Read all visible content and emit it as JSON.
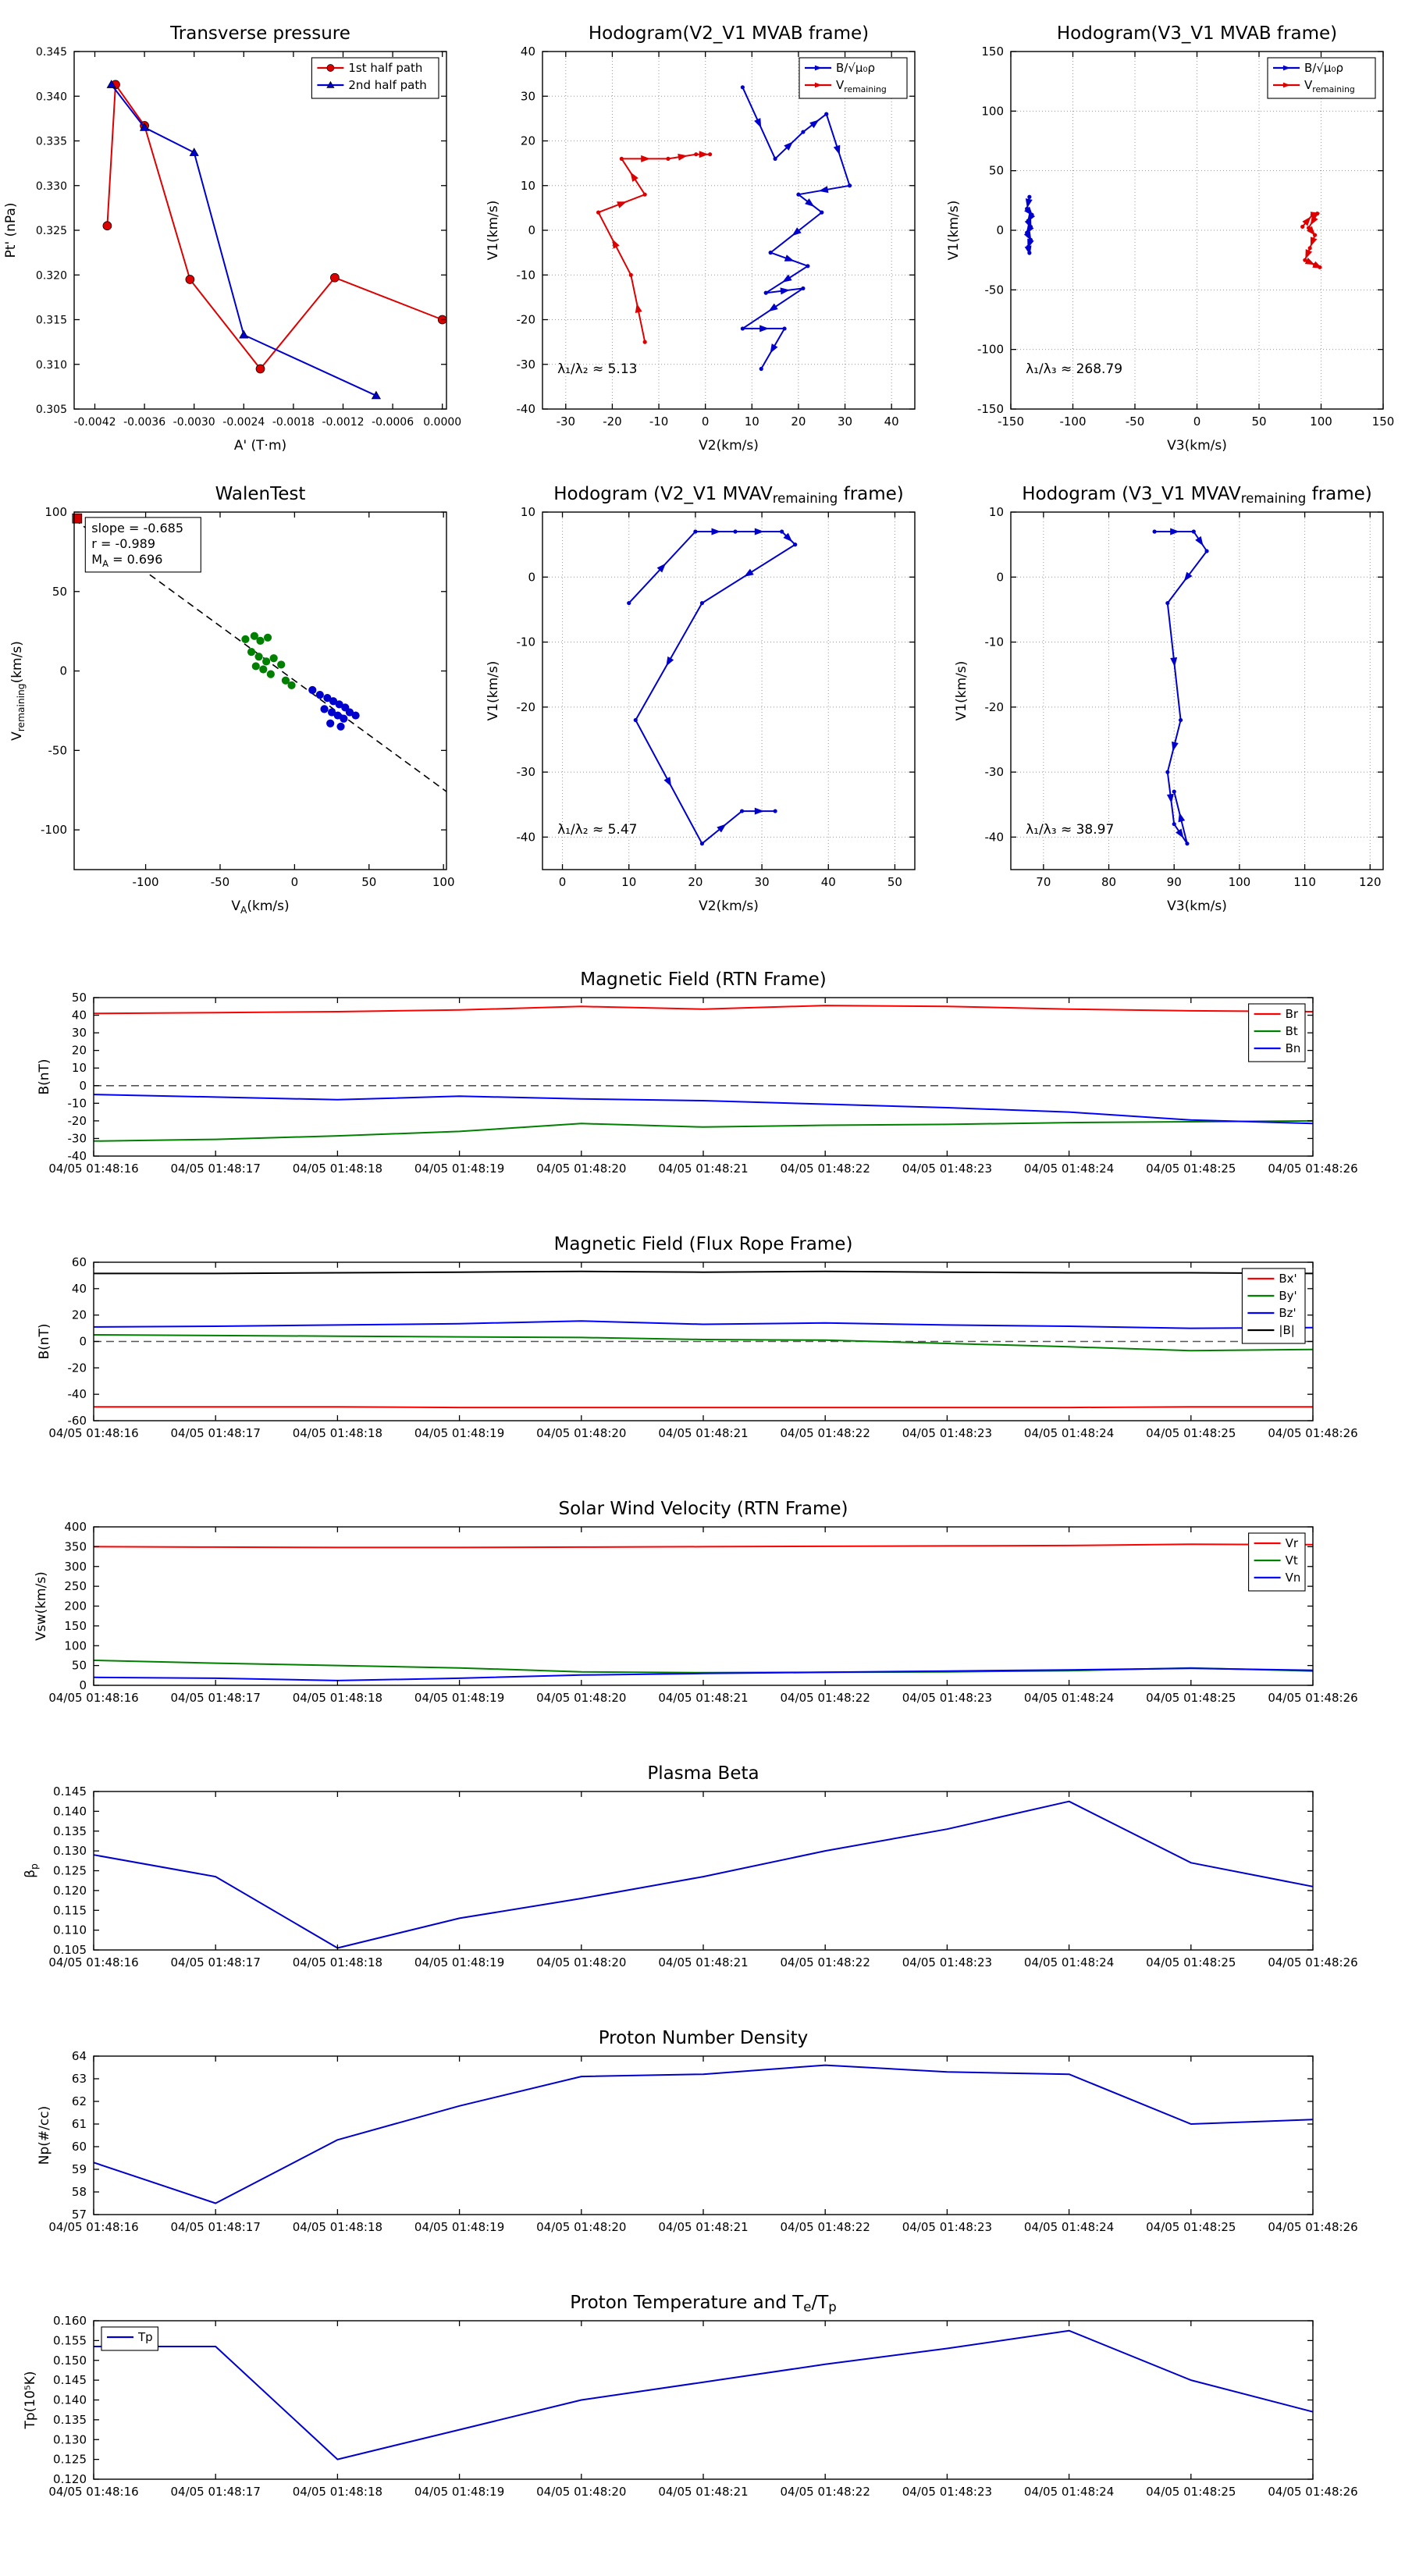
{
  "time_ticks": [
    "04/05 01:48:16",
    "04/05 01:48:17",
    "04/05 01:48:18",
    "04/05 01:48:19",
    "04/05 01:48:20",
    "04/05 01:48:21",
    "04/05 01:48:22",
    "04/05 01:48:23",
    "04/05 01:48:24",
    "04/05 01:48:25",
    "04/05 01:48:26"
  ],
  "chart_data": [
    {
      "id": "transverse-pressure",
      "type": "line",
      "title": "Transverse pressure",
      "xlabel": "A' (T·m)",
      "ylabel": "Pt' (nPa)",
      "xlim": [
        -0.00445,
        5e-05
      ],
      "ylim": [
        0.305,
        0.345
      ],
      "xticks": [
        -0.0042,
        -0.0036,
        -0.003,
        -0.0024,
        -0.0018,
        -0.0012,
        -0.0006,
        0.0
      ],
      "xdec": 4,
      "tickfs": 14,
      "yticks": [
        0.305,
        0.31,
        0.315,
        0.32,
        0.325,
        0.33,
        0.335,
        0.34,
        0.345
      ],
      "ydec": 3,
      "grid": false,
      "legend": "upper right",
      "series": [
        {
          "name": "1st half path",
          "color": "#dd0000",
          "marker": "circle",
          "x": [
            -0.00405,
            -0.00395,
            -0.0036,
            -0.00305,
            -0.0022,
            -0.0013,
            0.0
          ],
          "y": [
            0.3255,
            0.3413,
            0.3367,
            0.3195,
            0.3095,
            0.3197,
            0.315
          ]
        },
        {
          "name": "2nd half path",
          "color": "#0000cc",
          "marker": "triangle",
          "x": [
            -0.004,
            -0.0036,
            -0.003,
            -0.0024,
            -0.0008
          ],
          "y": [
            0.3413,
            0.3365,
            0.3337,
            0.3133,
            0.3065
          ]
        }
      ]
    },
    {
      "id": "hodogram-v2v1-mvab",
      "type": "line",
      "title": "Hodogram(V2_V1 MVAB frame)",
      "xlabel": "V2(km/s)",
      "ylabel": "V1(km/s)",
      "xlim": [
        -35,
        45
      ],
      "ylim": [
        -40,
        40
      ],
      "xticks": [
        -30,
        -20,
        -10,
        0,
        10,
        20,
        30,
        40
      ],
      "xdec": 0,
      "yticks": [
        -40,
        -30,
        -20,
        -10,
        0,
        10,
        20,
        30,
        40
      ],
      "ydec": 0,
      "grid": true,
      "legend": "upper right",
      "annotations": [
        {
          "fx": 0.04,
          "fy": 0.1,
          "lines": [
            "λ₁/λ₂ ≈ 5.13"
          ]
        }
      ],
      "series": [
        {
          "name": "B/√μ₀ρ",
          "color": "#0000cc",
          "marker": "arrow",
          "x": [
            8,
            15,
            21,
            26,
            31,
            20,
            25,
            14,
            22,
            13,
            21,
            8,
            17,
            12
          ],
          "y": [
            32,
            16,
            22,
            26,
            10,
            8,
            4,
            -5,
            -8,
            -14,
            -13,
            -22,
            -22,
            -31
          ]
        },
        {
          "name": "V_{remaining}",
          "color": "#dd0000",
          "marker": "arrow",
          "x": [
            -13,
            -16,
            -23,
            -13,
            -18,
            -8,
            -2,
            1
          ],
          "y": [
            -25,
            -10,
            4,
            8,
            16,
            16,
            17,
            17
          ]
        }
      ]
    },
    {
      "id": "hodogram-v3v1-mvab",
      "type": "line",
      "title": "Hodogram(V3_V1 MVAB frame)",
      "xlabel": "V3(km/s)",
      "ylabel": "V1(km/s)",
      "xlim": [
        -150,
        150
      ],
      "ylim": [
        -150,
        150
      ],
      "xticks": [
        -150,
        -100,
        -50,
        0,
        50,
        100,
        150
      ],
      "xdec": 0,
      "yticks": [
        -150,
        -100,
        -50,
        0,
        50,
        100,
        150
      ],
      "ydec": 0,
      "grid": true,
      "legend": "upper right",
      "annotations": [
        {
          "fx": 0.04,
          "fy": 0.1,
          "lines": [
            "λ₁/λ₃ ≈ 268.79"
          ]
        }
      ],
      "series": [
        {
          "name": "B/√μ₀ρ",
          "color": "#0000cc",
          "marker": "arrow",
          "x": [
            -135,
            -137,
            -133,
            -136,
            -134,
            -137,
            -134,
            -136,
            -135
          ],
          "y": [
            28,
            18,
            13,
            8,
            3,
            -2,
            -8,
            -14,
            -19
          ]
        },
        {
          "name": "V_{remaining}",
          "color": "#dd0000",
          "marker": "arrow",
          "x": [
            85,
            93,
            97,
            90,
            95,
            91,
            87,
            95,
            99
          ],
          "y": [
            3,
            13,
            14,
            2,
            -4,
            -15,
            -25,
            -29,
            -31
          ]
        }
      ]
    },
    {
      "id": "walen-test",
      "type": "scatter",
      "title": "WalenTest",
      "xlabel": "V_{A}(km/s)",
      "ylabel": "V_{remaining}(km/s)",
      "xlim": [
        -148,
        102
      ],
      "ylim": [
        -125,
        100
      ],
      "xticks": [
        -100,
        -50,
        0,
        50,
        100
      ],
      "xdec": 0,
      "yticks": [
        -100,
        -50,
        0,
        50,
        100
      ],
      "ydec": 0,
      "grid": false,
      "annotations": [
        {
          "fx": 0.03,
          "fy": 0.985,
          "box": true,
          "w": 148,
          "lines": [
            "slope = -0.685",
            "r = -0.989",
            "M_{A} = 0.696"
          ]
        }
      ],
      "series": [
        {
          "color": "#000000",
          "dash": "9,6",
          "width": 1.6,
          "x": [
            -148,
            102
          ],
          "y": [
            95.4,
            -75.9
          ]
        },
        {
          "color": "#cc0000",
          "line": false,
          "marker": "square",
          "msize": 6,
          "x": [
            -146
          ],
          "y": [
            96
          ]
        },
        {
          "color": "#008000",
          "line": false,
          "marker": "dot",
          "msize": 6,
          "x": [
            -33,
            -27,
            -23,
            -18,
            -29,
            -24,
            -19,
            -14,
            -9,
            -26,
            -21,
            -16,
            -6,
            -2
          ],
          "y": [
            20,
            22,
            19,
            21,
            12,
            9,
            6,
            8,
            4,
            3,
            1,
            -2,
            -6,
            -9
          ]
        },
        {
          "color": "#0000cc",
          "line": false,
          "marker": "dot",
          "msize": 6,
          "x": [
            12,
            17,
            22,
            26,
            30,
            34,
            20,
            25,
            29,
            33,
            37,
            41,
            24,
            31
          ],
          "y": [
            -12,
            -15,
            -17,
            -19,
            -21,
            -23,
            -24,
            -26,
            -28,
            -30,
            -26,
            -28,
            -33,
            -35
          ]
        }
      ]
    },
    {
      "id": "hodogram-v2v1-mvav",
      "type": "line",
      "title": "Hodogram (V2_V1 MVAV_{remaining} frame)",
      "xlabel": "V2(km/s)",
      "ylabel": "V1(km/s)",
      "xlim": [
        -3,
        53
      ],
      "ylim": [
        -45,
        10
      ],
      "xticks": [
        0,
        10,
        20,
        30,
        40,
        50
      ],
      "xdec": 0,
      "yticks": [
        -40,
        -30,
        -20,
        -10,
        0,
        10
      ],
      "ydec": 0,
      "grid": true,
      "annotations": [
        {
          "fx": 0.04,
          "fy": 0.1,
          "lines": [
            "λ₁/λ₂ ≈ 5.47"
          ]
        }
      ],
      "series": [
        {
          "color": "#0000cc",
          "marker": "arrow",
          "x": [
            10,
            20,
            26,
            33,
            35,
            21,
            11,
            21,
            27,
            32
          ],
          "y": [
            -4,
            7,
            7,
            7,
            5,
            -4,
            -22,
            -41,
            -36,
            -36
          ]
        }
      ]
    },
    {
      "id": "hodogram-v3v1-mvav",
      "type": "line",
      "title": "Hodogram (V3_V1 MVAV_{remaining} frame)",
      "xlabel": "V3(km/s)",
      "ylabel": "V1(km/s)",
      "xlim": [
        65,
        122
      ],
      "ylim": [
        -45,
        10
      ],
      "xticks": [
        70,
        80,
        90,
        100,
        110,
        120
      ],
      "xdec": 0,
      "yticks": [
        -40,
        -30,
        -20,
        -10,
        0,
        10
      ],
      "ydec": 0,
      "grid": true,
      "annotations": [
        {
          "fx": 0.04,
          "fy": 0.1,
          "lines": [
            "λ₁/λ₃ ≈ 38.97"
          ]
        }
      ],
      "series": [
        {
          "color": "#0000cc",
          "marker": "arrow",
          "x": [
            87,
            93,
            95,
            89,
            91,
            89,
            90,
            92,
            90
          ],
          "y": [
            7,
            7,
            4,
            -4,
            -22,
            -30,
            -38,
            -41,
            -33
          ]
        }
      ]
    },
    {
      "id": "magnetic-field-rtn",
      "type": "line",
      "title": "Magnetic Field (RTN Frame)",
      "ylabel": "B(nT)",
      "categories_key": "time_ticks",
      "xticks": [
        0,
        1,
        2,
        3,
        4,
        5,
        6,
        7,
        8,
        9,
        10
      ],
      "ylim": [
        -40,
        50
      ],
      "yticks": [
        -40,
        -30,
        -20,
        -10,
        0,
        10,
        20,
        30,
        40,
        50
      ],
      "ydec": 0,
      "zeroline": true,
      "legend": "upper right",
      "series": [
        {
          "name": "Br",
          "color": "#ff0000",
          "values": [
            41,
            41.5,
            42,
            43,
            45,
            43.5,
            45.5,
            45,
            43.5,
            42.5,
            42
          ]
        },
        {
          "name": "Bt",
          "color": "#008000",
          "values": [
            -31.5,
            -30.5,
            -28.5,
            -26,
            -21.5,
            -23.5,
            -22.5,
            -22,
            -21,
            -20.5,
            -20
          ]
        },
        {
          "name": "Bn",
          "color": "#0000ff",
          "values": [
            -5,
            -6.5,
            -8,
            -6,
            -7.5,
            -8.5,
            -10.5,
            -12.5,
            -15,
            -19.5,
            -21.5
          ]
        }
      ]
    },
    {
      "id": "magnetic-field-flux-rope",
      "type": "line",
      "title": "Magnetic Field (Flux Rope Frame)",
      "ylabel": "B(nT)",
      "categories_key": "time_ticks",
      "xticks": [
        0,
        1,
        2,
        3,
        4,
        5,
        6,
        7,
        8,
        9,
        10
      ],
      "ylim": [
        -60,
        60
      ],
      "yticks": [
        -60,
        -40,
        -20,
        0,
        20,
        40,
        60
      ],
      "ydec": 0,
      "zeroline": true,
      "legend": "upper right",
      "series": [
        {
          "name": "Bx'",
          "color": "#ff0000",
          "values": [
            -49.5,
            -49.5,
            -49.5,
            -50,
            -50,
            -50,
            -50,
            -50,
            -50,
            -49.5,
            -49.5
          ]
        },
        {
          "name": "By'",
          "color": "#008000",
          "values": [
            5,
            4.5,
            4,
            3.5,
            3,
            1.5,
            1,
            -1.5,
            -4,
            -7,
            -6
          ]
        },
        {
          "name": "Bz'",
          "color": "#0000ff",
          "values": [
            11,
            11.5,
            12.5,
            13.5,
            15.5,
            13,
            14,
            12.5,
            11.5,
            10,
            10.5
          ]
        },
        {
          "name": "|B|",
          "color": "#000000",
          "values": [
            51.5,
            51.5,
            52,
            52.5,
            53,
            52.5,
            53,
            52.5,
            52,
            52,
            51.5
          ]
        }
      ]
    },
    {
      "id": "solar-wind-velocity",
      "type": "line",
      "title": "Solar Wind Velocity (RTN Frame)",
      "ylabel": "Vsw(km/s)",
      "categories_key": "time_ticks",
      "xticks": [
        0,
        1,
        2,
        3,
        4,
        5,
        6,
        7,
        8,
        9,
        10
      ],
      "ylim": [
        0,
        400
      ],
      "yticks": [
        0,
        50,
        100,
        150,
        200,
        250,
        300,
        350,
        400
      ],
      "ydec": 0,
      "legend": "upper right",
      "series": [
        {
          "name": "Vr",
          "color": "#ff0000",
          "values": [
            350,
            349,
            348,
            348,
            349,
            350,
            351,
            352,
            353,
            356,
            355
          ]
        },
        {
          "name": "Vt",
          "color": "#008000",
          "values": [
            63,
            56,
            50,
            44,
            34,
            32,
            33,
            34,
            37,
            44,
            36
          ]
        },
        {
          "name": "Vn",
          "color": "#0000ff",
          "values": [
            20,
            18,
            12,
            18,
            26,
            30,
            33,
            36,
            39,
            43,
            38
          ]
        }
      ]
    },
    {
      "id": "plasma-beta",
      "type": "line",
      "title": "Plasma Beta",
      "ylabel": "β_{p}",
      "categories_key": "time_ticks",
      "xticks": [
        0,
        1,
        2,
        3,
        4,
        5,
        6,
        7,
        8,
        9,
        10
      ],
      "ylim": [
        0.105,
        0.145
      ],
      "yticks": [
        0.105,
        0.11,
        0.115,
        0.12,
        0.125,
        0.13,
        0.135,
        0.14,
        0.145
      ],
      "ydec": 3,
      "series": [
        {
          "color": "#0000cc",
          "values": [
            0.129,
            0.1235,
            0.1055,
            0.113,
            0.118,
            0.1235,
            0.13,
            0.1355,
            0.1425,
            0.127,
            0.121
          ]
        }
      ]
    },
    {
      "id": "proton-number-density",
      "type": "line",
      "title": "Proton Number Density",
      "ylabel": "Np(#/cc)",
      "categories_key": "time_ticks",
      "xticks": [
        0,
        1,
        2,
        3,
        4,
        5,
        6,
        7,
        8,
        9,
        10
      ],
      "ylim": [
        57,
        64
      ],
      "yticks": [
        57,
        58,
        59,
        60,
        61,
        62,
        63,
        64
      ],
      "ydec": 0,
      "series": [
        {
          "color": "#0000cc",
          "values": [
            59.3,
            57.5,
            60.3,
            61.8,
            63.1,
            63.2,
            63.6,
            63.3,
            63.2,
            61.0,
            61.2
          ]
        }
      ]
    },
    {
      "id": "proton-temperature",
      "type": "line",
      "title": "Proton Temperature and T_{e}/T_{p}",
      "ylabel": "Tp(10⁵K)",
      "categories_key": "time_ticks",
      "xticks": [
        0,
        1,
        2,
        3,
        4,
        5,
        6,
        7,
        8,
        9,
        10
      ],
      "ylim": [
        0.12,
        0.16
      ],
      "yticks": [
        0.12,
        0.125,
        0.13,
        0.135,
        0.14,
        0.145,
        0.15,
        0.155,
        0.16
      ],
      "ydec": 3,
      "legend": "upper left",
      "series": [
        {
          "name": "Tp",
          "color": "#0000cc",
          "values": [
            0.1535,
            0.1535,
            0.125,
            0.1325,
            0.14,
            0.1445,
            0.149,
            0.153,
            0.1575,
            0.145,
            0.137
          ]
        }
      ]
    }
  ]
}
